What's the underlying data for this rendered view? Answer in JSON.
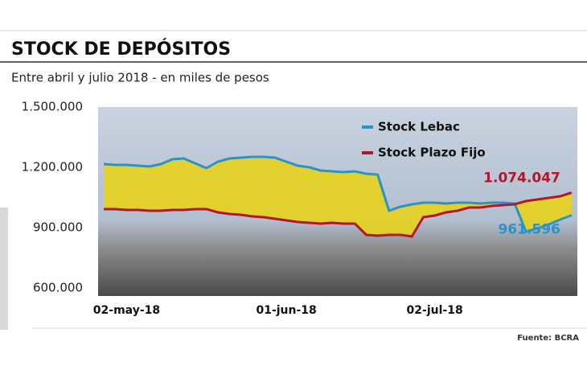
{
  "chart_data": {
    "type": "line",
    "title": "STOCK DE DEPÓSITOS",
    "subtitle": "Entre abril y julio 2018 - en miles de pesos",
    "source": "Fuente: BCRA",
    "categories": [
      null,
      null,
      "02-may-18",
      null,
      null,
      null,
      null,
      null,
      null,
      null,
      null,
      null,
      null,
      null,
      null,
      null,
      "01-jun-18",
      null,
      null,
      null,
      null,
      null,
      null,
      null,
      null,
      null,
      null,
      null,
      null,
      "02-jul-18",
      null,
      null,
      null,
      null,
      null,
      null,
      null,
      null,
      null,
      null,
      null,
      null
    ],
    "ylim": [
      600000,
      1500000
    ],
    "yticks": [
      {
        "value": 1500000,
        "label": "1.500.000"
      },
      {
        "value": 1200000,
        "label": "1.200.000"
      },
      {
        "value": 900000,
        "label": "900.000"
      },
      {
        "value": 600000,
        "label": "600.000"
      }
    ],
    "fill_color": "#e6d11c",
    "series": [
      {
        "name": "Stock Lebac",
        "color": "#2b93c9",
        "values": [
          1216000,
          1212000,
          1212000,
          1208000,
          1204000,
          1216000,
          1240000,
          1244000,
          1220000,
          1196000,
          1228000,
          1244000,
          1248000,
          1252000,
          1252000,
          1248000,
          1228000,
          1208000,
          1200000,
          1184000,
          1180000,
          1176000,
          1180000,
          1168000,
          1164000,
          984000,
          1004000,
          1016000,
          1024000,
          1024000,
          1020000,
          1024000,
          1024000,
          1020000,
          1024000,
          1024000,
          1020000,
          880000,
          896000,
          916000,
          940000,
          961596
        ],
        "value_labels": [
          null,
          null,
          null,
          null,
          null,
          null,
          null,
          null,
          null,
          null,
          null,
          null,
          null,
          null,
          null,
          null,
          null,
          null,
          null,
          null,
          null,
          null,
          null,
          null,
          null,
          null,
          null,
          null,
          null,
          null,
          null,
          null,
          null,
          null,
          null,
          null,
          null,
          null,
          null,
          null,
          null,
          "961.596"
        ]
      },
      {
        "name": "Stock Plazo Fijo",
        "color": "#b3162c",
        "values": [
          992000,
          992000,
          988000,
          988000,
          984000,
          984000,
          988000,
          988000,
          992000,
          992000,
          976000,
          968000,
          964000,
          956000,
          952000,
          944000,
          936000,
          928000,
          924000,
          920000,
          924000,
          920000,
          920000,
          864000,
          860000,
          864000,
          864000,
          856000,
          952000,
          960000,
          976000,
          984000,
          1000000,
          1000000,
          1008000,
          1012000,
          1016000,
          1032000,
          1040000,
          1048000,
          1056000,
          1074047
        ],
        "value_labels": [
          null,
          null,
          null,
          null,
          null,
          null,
          null,
          null,
          null,
          null,
          null,
          null,
          null,
          null,
          null,
          null,
          null,
          null,
          null,
          null,
          null,
          null,
          null,
          null,
          null,
          null,
          null,
          null,
          null,
          null,
          null,
          null,
          null,
          null,
          null,
          null,
          null,
          null,
          null,
          null,
          null,
          "1.074.047"
        ]
      }
    ]
  }
}
